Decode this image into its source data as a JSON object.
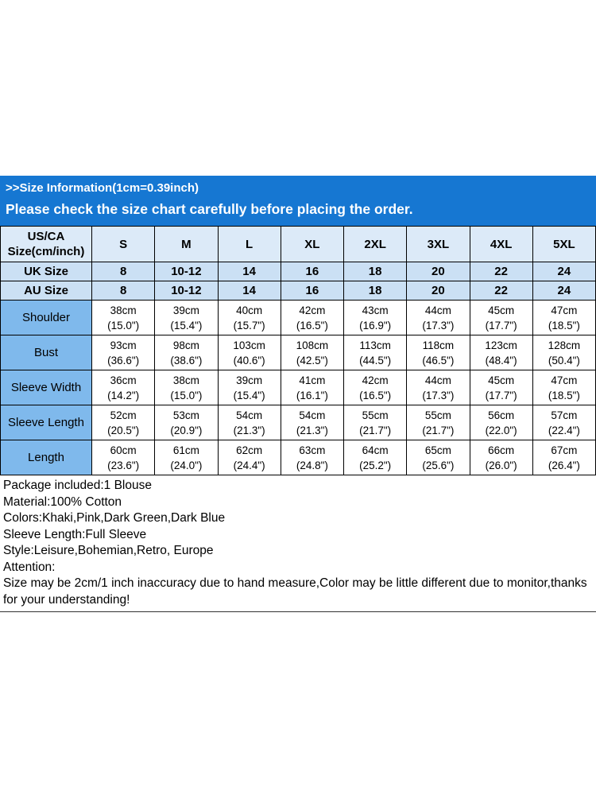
{
  "banner": {
    "line1": ">>Size Information(1cm=0.39inch)",
    "line2": "Please check the size chart carefully before placing the order."
  },
  "colors": {
    "banner_blue": "#1677d2",
    "header_row_bg": "#dceaf8",
    "uk_au_row_bg": "#cbe0f4",
    "label_column_bg": "#7fb9ec",
    "table_border": "#000000"
  },
  "table": {
    "corner": "US/CA\nSize(cm/inch)",
    "columns": [
      "S",
      "M",
      "L",
      "XL",
      "2XL",
      "3XL",
      "4XL",
      "5XL"
    ],
    "uk": {
      "label": "UK Size",
      "values": [
        "8",
        "10-12",
        "14",
        "16",
        "18",
        "20",
        "22",
        "24"
      ]
    },
    "au": {
      "label": "AU Size",
      "values": [
        "8",
        "10-12",
        "14",
        "16",
        "18",
        "20",
        "22",
        "24"
      ]
    },
    "measurements": [
      {
        "label": "Shoulder",
        "values": [
          "38cm\n(15.0\")",
          "39cm\n(15.4\")",
          "40cm\n(15.7\")",
          "42cm\n(16.5\")",
          "43cm\n(16.9\")",
          "44cm\n(17.3\")",
          "45cm\n(17.7\")",
          "47cm\n(18.5\")"
        ]
      },
      {
        "label": "Bust",
        "values": [
          "93cm\n(36.6\")",
          "98cm\n(38.6\")",
          "103cm\n(40.6\")",
          "108cm\n(42.5\")",
          "113cm\n(44.5\")",
          "118cm\n(46.5\")",
          "123cm\n(48.4\")",
          "128cm\n(50.4\")"
        ]
      },
      {
        "label": "Sleeve Width",
        "values": [
          "36cm\n(14.2\")",
          "38cm\n(15.0\")",
          "39cm\n(15.4\")",
          "41cm\n(16.1\")",
          "42cm\n(16.5\")",
          "44cm\n(17.3\")",
          "45cm\n(17.7\")",
          "47cm\n(18.5\")"
        ]
      },
      {
        "label": "Sleeve Length",
        "values": [
          "52cm\n(20.5\")",
          "53cm\n(20.9\")",
          "54cm\n(21.3\")",
          "54cm\n(21.3\")",
          "55cm\n(21.7\")",
          "55cm\n(21.7\")",
          "56cm\n(22.0\")",
          "57cm\n(22.4\")"
        ]
      },
      {
        "label": "Length",
        "values": [
          "60cm\n(23.6\")",
          "61cm\n(24.0\")",
          "62cm\n(24.4\")",
          "63cm\n(24.8\")",
          "64cm\n(25.2\")",
          "65cm\n(25.6\")",
          "66cm\n(26.0\")",
          "67cm\n(26.4\")"
        ]
      }
    ]
  },
  "details": {
    "lines": [
      "Package included:1 Blouse",
      "Material:100% Cotton",
      "Colors:Khaki,Pink,Dark Green,Dark Blue",
      "Sleeve Length:Full Sleeve",
      "Style:Leisure,Bohemian,Retro, Europe",
      "Attention:",
      "Size may be 2cm/1 inch inaccuracy due to hand measure,Color may be little different due to monitor,thanks for your understanding!"
    ]
  }
}
